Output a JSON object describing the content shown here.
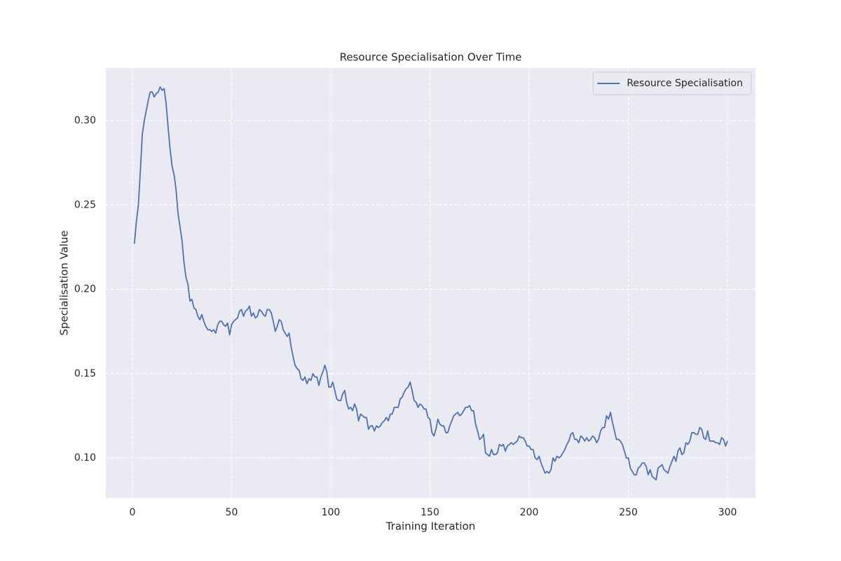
{
  "chart_data": {
    "type": "line",
    "title": "Resource Specialisation Over Time",
    "x_label": "Training Iteration",
    "y_label": "Specialisation Value",
    "xlim": [
      -13.4,
      314.1
    ],
    "ylim": [
      0.0763,
      0.3312
    ],
    "xticks": [
      0,
      50,
      100,
      150,
      200,
      250,
      300
    ],
    "yticks": [
      {
        "value": 0.1,
        "label": "0.10"
      },
      0.15,
      {
        "value": 0.2,
        "label": "0.20"
      },
      0.25,
      {
        "value": 0.3,
        "label": "0.30"
      }
    ],
    "grid": true,
    "legend": "upper right",
    "x": [
      1,
      2,
      3,
      4,
      5,
      6,
      7,
      8,
      9,
      10,
      11,
      12,
      13,
      14,
      15,
      16,
      17,
      18,
      19,
      20,
      21,
      22,
      23,
      24,
      25,
      26,
      27,
      28,
      29,
      30,
      31,
      32,
      33,
      34,
      35,
      36,
      37,
      38,
      39,
      40,
      41,
      42,
      43,
      44,
      45,
      46,
      47,
      48,
      49,
      50,
      51,
      52,
      53,
      54,
      55,
      56,
      57,
      58,
      59,
      60,
      61,
      62,
      63,
      64,
      65,
      66,
      67,
      68,
      69,
      70,
      71,
      72,
      73,
      74,
      75,
      76,
      77,
      78,
      79,
      80,
      81,
      82,
      83,
      84,
      85,
      86,
      87,
      88,
      89,
      90,
      91,
      92,
      93,
      94,
      95,
      96,
      97,
      98,
      99,
      100,
      101,
      102,
      103,
      104,
      105,
      106,
      107,
      108,
      109,
      110,
      111,
      112,
      113,
      114,
      115,
      116,
      117,
      118,
      119,
      120,
      121,
      122,
      123,
      124,
      125,
      126,
      127,
      128,
      129,
      130,
      131,
      132,
      133,
      134,
      135,
      136,
      137,
      138,
      139,
      140,
      141,
      142,
      143,
      144,
      145,
      146,
      147,
      148,
      149,
      150,
      151,
      152,
      153,
      154,
      155,
      156,
      157,
      158,
      159,
      160,
      161,
      162,
      163,
      164,
      165,
      166,
      167,
      168,
      169,
      170,
      171,
      172,
      173,
      174,
      175,
      176,
      177,
      178,
      179,
      180,
      181,
      182,
      183,
      184,
      185,
      186,
      187,
      188,
      189,
      190,
      191,
      192,
      193,
      194,
      195,
      196,
      197,
      198,
      199,
      200,
      201,
      202,
      203,
      204,
      205,
      206,
      207,
      208,
      209,
      210,
      211,
      212,
      213,
      214,
      215,
      216,
      217,
      218,
      219,
      220,
      221,
      222,
      223,
      224,
      225,
      226,
      227,
      228,
      229,
      230,
      231,
      232,
      233,
      234,
      235,
      236,
      237,
      238,
      239,
      240,
      241,
      242,
      243,
      244,
      245,
      246,
      247,
      248,
      249,
      250,
      251,
      252,
      253,
      254,
      255,
      256,
      257,
      258,
      259,
      260,
      261,
      262,
      263,
      264,
      265,
      266,
      267,
      268,
      269,
      270,
      271,
      272,
      273,
      274,
      275,
      276,
      277,
      278,
      279,
      280,
      281,
      282,
      283,
      284,
      285,
      286,
      287,
      288,
      289,
      290,
      291,
      292,
      293,
      294,
      295,
      296,
      297,
      298,
      299,
      300
    ],
    "series": [
      {
        "name": "Resource Specialisation",
        "color": "#4c72b0",
        "values": [
          0.227,
          0.24,
          0.25,
          0.27,
          0.292,
          0.3,
          0.306,
          0.312,
          0.317,
          0.317,
          0.314,
          0.316,
          0.317,
          0.32,
          0.318,
          0.319,
          0.31,
          0.296,
          0.283,
          0.273,
          0.268,
          0.259,
          0.245,
          0.237,
          0.229,
          0.216,
          0.207,
          0.203,
          0.193,
          0.194,
          0.189,
          0.188,
          0.184,
          0.182,
          0.185,
          0.181,
          0.178,
          0.176,
          0.176,
          0.175,
          0.176,
          0.174,
          0.179,
          0.181,
          0.181,
          0.179,
          0.178,
          0.18,
          0.173,
          0.179,
          0.181,
          0.182,
          0.183,
          0.187,
          0.188,
          0.184,
          0.187,
          0.188,
          0.19,
          0.184,
          0.186,
          0.183,
          0.184,
          0.188,
          0.187,
          0.185,
          0.184,
          0.188,
          0.188,
          0.186,
          0.181,
          0.175,
          0.178,
          0.182,
          0.181,
          0.176,
          0.174,
          0.172,
          0.174,
          0.166,
          0.16,
          0.155,
          0.153,
          0.152,
          0.147,
          0.146,
          0.148,
          0.144,
          0.147,
          0.146,
          0.15,
          0.148,
          0.148,
          0.143,
          0.148,
          0.151,
          0.155,
          0.151,
          0.142,
          0.142,
          0.145,
          0.14,
          0.135,
          0.134,
          0.134,
          0.138,
          0.14,
          0.133,
          0.129,
          0.13,
          0.128,
          0.132,
          0.129,
          0.122,
          0.126,
          0.125,
          0.124,
          0.124,
          0.117,
          0.119,
          0.119,
          0.116,
          0.119,
          0.118,
          0.119,
          0.121,
          0.122,
          0.124,
          0.122,
          0.126,
          0.126,
          0.13,
          0.13,
          0.13,
          0.135,
          0.136,
          0.139,
          0.141,
          0.142,
          0.145,
          0.14,
          0.134,
          0.133,
          0.13,
          0.132,
          0.131,
          0.129,
          0.129,
          0.124,
          0.123,
          0.115,
          0.113,
          0.117,
          0.123,
          0.12,
          0.119,
          0.119,
          0.115,
          0.115,
          0.119,
          0.122,
          0.125,
          0.126,
          0.127,
          0.125,
          0.126,
          0.128,
          0.13,
          0.13,
          0.131,
          0.128,
          0.128,
          0.12,
          0.116,
          0.111,
          0.112,
          0.114,
          0.103,
          0.102,
          0.101,
          0.105,
          0.102,
          0.102,
          0.103,
          0.108,
          0.107,
          0.108,
          0.104,
          0.107,
          0.108,
          0.109,
          0.108,
          0.109,
          0.11,
          0.113,
          0.112,
          0.112,
          0.11,
          0.107,
          0.107,
          0.105,
          0.105,
          0.1,
          0.099,
          0.101,
          0.097,
          0.094,
          0.091,
          0.092,
          0.091,
          0.093,
          0.1,
          0.098,
          0.101,
          0.1,
          0.101,
          0.103,
          0.105,
          0.108,
          0.11,
          0.114,
          0.115,
          0.111,
          0.111,
          0.109,
          0.113,
          0.112,
          0.11,
          0.112,
          0.11,
          0.111,
          0.113,
          0.112,
          0.109,
          0.111,
          0.116,
          0.118,
          0.118,
          0.125,
          0.123,
          0.127,
          0.121,
          0.116,
          0.111,
          0.111,
          0.11,
          0.108,
          0.104,
          0.1,
          0.1,
          0.094,
          0.092,
          0.09,
          0.09,
          0.094,
          0.095,
          0.097,
          0.097,
          0.095,
          0.09,
          0.093,
          0.089,
          0.088,
          0.087,
          0.094,
          0.095,
          0.096,
          0.093,
          0.092,
          0.091,
          0.095,
          0.098,
          0.101,
          0.098,
          0.104,
          0.106,
          0.102,
          0.103,
          0.109,
          0.108,
          0.11,
          0.115,
          0.115,
          0.114,
          0.114,
          0.118,
          0.117,
          0.112,
          0.111,
          0.116,
          0.11,
          0.11,
          0.11,
          0.109,
          0.109,
          0.108,
          0.112,
          0.111,
          0.107,
          0.11
        ]
      }
    ]
  }
}
